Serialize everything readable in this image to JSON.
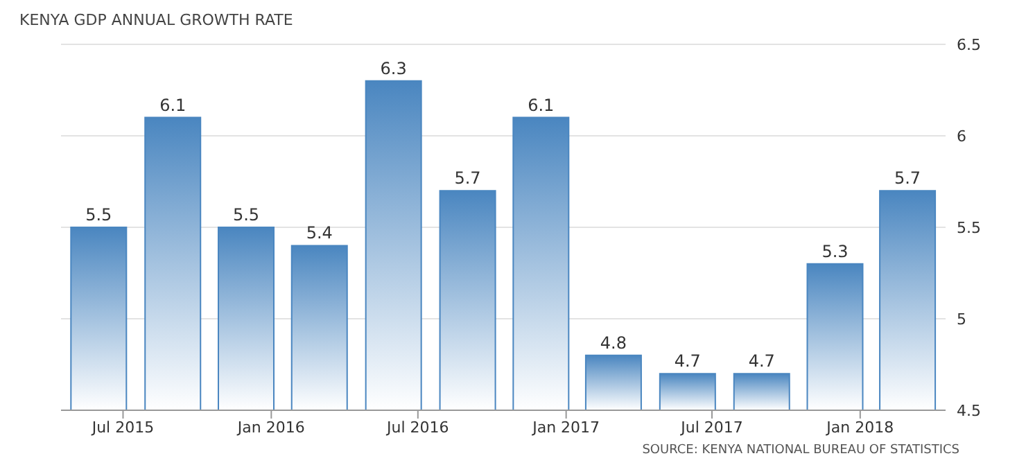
{
  "chart_data": {
    "type": "bar",
    "title": "KENYA GDP ANNUAL GROWTH RATE",
    "x": [
      "2015-06",
      "2015-09",
      "2015-12",
      "2016-03",
      "2016-06",
      "2016-09",
      "2016-12",
      "2017-03",
      "2017-06",
      "2017-09",
      "2017-12",
      "2018-03"
    ],
    "values": [
      5.5,
      6.1,
      5.5,
      5.4,
      6.3,
      5.7,
      6.1,
      4.8,
      4.7,
      4.7,
      5.3,
      5.7
    ],
    "color": "#4a86c0",
    "data_labels": true,
    "xlim": [
      "2015-04-15",
      "2018-04-17"
    ],
    "xticks": [
      {
        "value": "2015-07",
        "label": "Jul 2015"
      },
      {
        "value": "2016-01",
        "label": "Jan 2016"
      },
      {
        "value": "2016-07",
        "label": "Jul 2016"
      },
      {
        "value": "2017-01",
        "label": "Jan 2017"
      },
      {
        "value": "2017-07",
        "label": "Jul 2017"
      },
      {
        "value": "2018-01",
        "label": "Jan 2018"
      }
    ],
    "ylim": [
      4.5,
      6.5
    ],
    "yticks": [
      4.5,
      5,
      5.5,
      6,
      6.5
    ],
    "grid": "y",
    "annotations": [
      "SOURCE: KENYA NATIONAL BUREAU OF STATISTICS"
    ]
  }
}
